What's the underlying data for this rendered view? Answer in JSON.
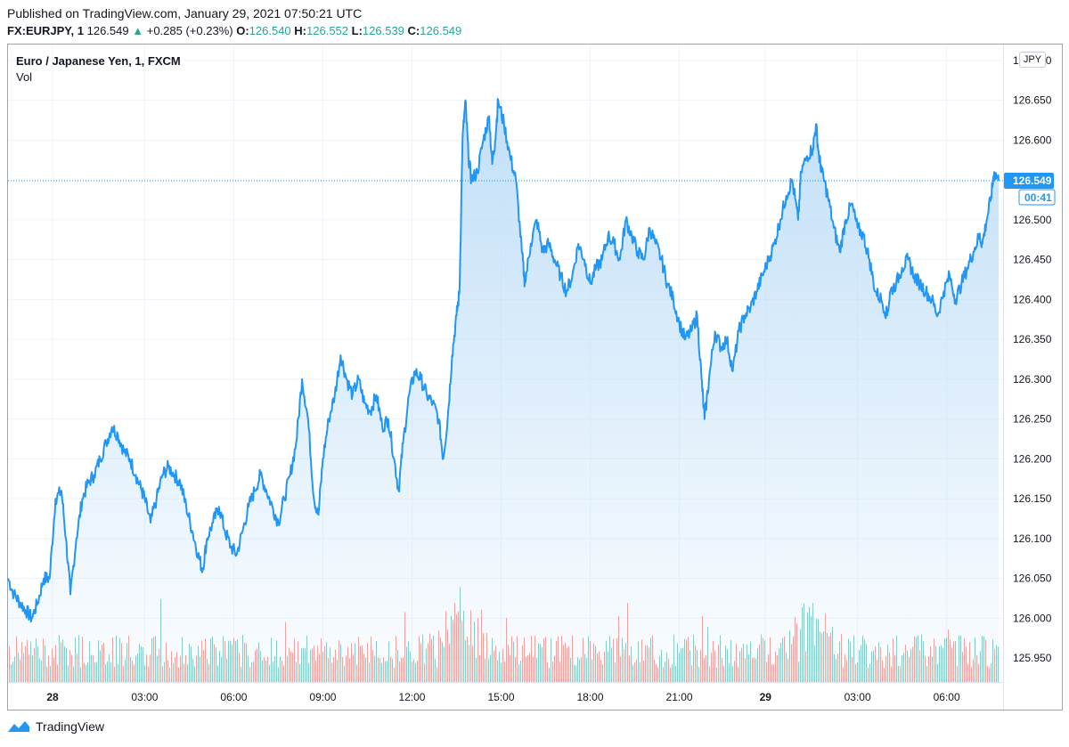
{
  "header": {
    "published": "Published on TradingView.com, January 29, 2021 07:50:21 UTC",
    "symbol": "FX:EURJPY, 1",
    "last": "126.549",
    "change_arrow": "▲",
    "change": "+0.285 (+0.23%)",
    "o_label": "O:",
    "o_value": "126.540",
    "h_label": "H:",
    "h_value": "126.552",
    "l_label": "L:",
    "l_value": "126.539",
    "c_label": "C:",
    "c_value": "126.549"
  },
  "legend": {
    "title": "Euro / Japanese Yen, 1, FXCM",
    "vol": "Vol"
  },
  "currency_badge": "JPY",
  "price_label": "126.549",
  "countdown_label": "00:41",
  "footer": {
    "brand": "TradingView",
    "logo_icon": "tradingview-logo-icon"
  },
  "colors": {
    "line": "#2196f3",
    "fill_top": "#bbdcf7",
    "up_volume": "#26a69a",
    "down_volume": "#ef5350",
    "grid": "#f0f3fa"
  },
  "chart_data": {
    "type": "area",
    "title": "Euro / Japanese Yen, 1, FXCM",
    "ylim": [
      125.92,
      126.72
    ],
    "y_ticks": [
      "126.700",
      "126.650",
      "126.600",
      "126.550",
      "126.500",
      "126.450",
      "126.400",
      "126.350",
      "126.300",
      "126.250",
      "126.200",
      "126.150",
      "126.100",
      "126.050",
      "126.000",
      "125.950"
    ],
    "x_ticks": [
      {
        "label": "28",
        "t": -0.1,
        "bold": true
      },
      {
        "label": "03:00",
        "t": 3
      },
      {
        "label": "06:00",
        "t": 6
      },
      {
        "label": "09:00",
        "t": 9
      },
      {
        "label": "12:00",
        "t": 12
      },
      {
        "label": "15:00",
        "t": 15
      },
      {
        "label": "18:00",
        "t": 18
      },
      {
        "label": "21:00",
        "t": 21
      },
      {
        "label": "29",
        "t": 23.9,
        "bold": true
      },
      {
        "label": "03:00",
        "t": 27
      },
      {
        "label": "06:00",
        "t": 30
      }
    ],
    "x_unit": "hours since Jan 28 00:00 UTC",
    "xlim": [
      -1.6,
      31.9
    ],
    "series": [
      {
        "name": "EURJPY",
        "points": [
          [
            -1.6,
            126.05
          ],
          [
            -1.4,
            126.03
          ],
          [
            -1.2,
            126.02
          ],
          [
            -1.0,
            126.01
          ],
          [
            -0.8,
            126.0
          ],
          [
            -0.6,
            126.02
          ],
          [
            -0.4,
            126.05
          ],
          [
            -0.2,
            126.05
          ],
          [
            0.0,
            126.15
          ],
          [
            0.2,
            126.16
          ],
          [
            0.35,
            126.1
          ],
          [
            0.5,
            126.03
          ],
          [
            0.7,
            126.1
          ],
          [
            0.9,
            126.15
          ],
          [
            1.1,
            126.17
          ],
          [
            1.3,
            126.18
          ],
          [
            1.5,
            126.2
          ],
          [
            1.7,
            126.22
          ],
          [
            1.9,
            126.24
          ],
          [
            2.1,
            126.23
          ],
          [
            2.3,
            126.21
          ],
          [
            2.5,
            126.2
          ],
          [
            2.7,
            126.18
          ],
          [
            2.9,
            126.16
          ],
          [
            3.0,
            126.15
          ],
          [
            3.2,
            126.12
          ],
          [
            3.4,
            126.15
          ],
          [
            3.6,
            126.18
          ],
          [
            3.8,
            126.19
          ],
          [
            4.0,
            126.18
          ],
          [
            4.2,
            126.17
          ],
          [
            4.4,
            126.14
          ],
          [
            4.6,
            126.11
          ],
          [
            4.8,
            126.08
          ],
          [
            4.95,
            126.06
          ],
          [
            5.1,
            126.1
          ],
          [
            5.3,
            126.12
          ],
          [
            5.5,
            126.14
          ],
          [
            5.7,
            126.11
          ],
          [
            5.9,
            126.09
          ],
          [
            6.1,
            126.08
          ],
          [
            6.3,
            126.11
          ],
          [
            6.5,
            126.14
          ],
          [
            6.7,
            126.16
          ],
          [
            6.9,
            126.18
          ],
          [
            7.1,
            126.16
          ],
          [
            7.3,
            126.14
          ],
          [
            7.5,
            126.12
          ],
          [
            7.7,
            126.15
          ],
          [
            7.9,
            126.18
          ],
          [
            8.1,
            126.22
          ],
          [
            8.3,
            126.3
          ],
          [
            8.5,
            126.25
          ],
          [
            8.7,
            126.15
          ],
          [
            8.85,
            126.13
          ],
          [
            9.0,
            126.2
          ],
          [
            9.2,
            126.25
          ],
          [
            9.4,
            126.28
          ],
          [
            9.6,
            126.33
          ],
          [
            9.8,
            126.3
          ],
          [
            10.0,
            126.28
          ],
          [
            10.2,
            126.3
          ],
          [
            10.4,
            126.27
          ],
          [
            10.6,
            126.26
          ],
          [
            10.8,
            126.28
          ],
          [
            11.0,
            126.24
          ],
          [
            11.2,
            126.25
          ],
          [
            11.4,
            126.2
          ],
          [
            11.55,
            126.16
          ],
          [
            11.7,
            126.22
          ],
          [
            11.9,
            126.28
          ],
          [
            12.1,
            126.31
          ],
          [
            12.3,
            126.3
          ],
          [
            12.5,
            126.28
          ],
          [
            12.7,
            126.27
          ],
          [
            12.9,
            126.25
          ],
          [
            13.05,
            126.2
          ],
          [
            13.2,
            126.25
          ],
          [
            13.35,
            126.33
          ],
          [
            13.5,
            126.38
          ],
          [
            13.6,
            126.41
          ],
          [
            13.7,
            126.6
          ],
          [
            13.8,
            126.65
          ],
          [
            13.9,
            126.58
          ],
          [
            14.0,
            126.55
          ],
          [
            14.2,
            126.56
          ],
          [
            14.4,
            126.6
          ],
          [
            14.6,
            126.63
          ],
          [
            14.7,
            126.57
          ],
          [
            14.8,
            126.6
          ],
          [
            14.9,
            126.65
          ],
          [
            15.1,
            126.62
          ],
          [
            15.3,
            126.58
          ],
          [
            15.5,
            126.55
          ],
          [
            15.7,
            126.46
          ],
          [
            15.8,
            126.42
          ],
          [
            16.0,
            126.47
          ],
          [
            16.2,
            126.5
          ],
          [
            16.4,
            126.46
          ],
          [
            16.6,
            126.47
          ],
          [
            16.8,
            126.45
          ],
          [
            17.0,
            126.43
          ],
          [
            17.2,
            126.41
          ],
          [
            17.4,
            126.43
          ],
          [
            17.6,
            126.47
          ],
          [
            17.8,
            126.45
          ],
          [
            18.0,
            126.42
          ],
          [
            18.2,
            126.44
          ],
          [
            18.4,
            126.45
          ],
          [
            18.6,
            126.48
          ],
          [
            18.8,
            126.47
          ],
          [
            19.0,
            126.45
          ],
          [
            19.2,
            126.5
          ],
          [
            19.4,
            126.48
          ],
          [
            19.6,
            126.46
          ],
          [
            19.8,
            126.45
          ],
          [
            20.0,
            126.49
          ],
          [
            20.2,
            126.47
          ],
          [
            20.4,
            126.45
          ],
          [
            20.6,
            126.42
          ],
          [
            20.8,
            126.4
          ],
          [
            21.0,
            126.37
          ],
          [
            21.2,
            126.35
          ],
          [
            21.4,
            126.36
          ],
          [
            21.6,
            126.38
          ],
          [
            21.75,
            126.3
          ],
          [
            21.85,
            126.25
          ],
          [
            22.0,
            126.3
          ],
          [
            22.2,
            126.36
          ],
          [
            22.4,
            126.34
          ],
          [
            22.6,
            126.35
          ],
          [
            22.8,
            126.31
          ],
          [
            23.0,
            126.36
          ],
          [
            23.2,
            126.38
          ],
          [
            23.4,
            126.39
          ],
          [
            23.6,
            126.41
          ],
          [
            23.8,
            126.43
          ],
          [
            24.0,
            126.45
          ],
          [
            24.2,
            126.47
          ],
          [
            24.4,
            126.5
          ],
          [
            24.6,
            126.53
          ],
          [
            24.8,
            126.55
          ],
          [
            25.0,
            126.5
          ],
          [
            25.1,
            126.56
          ],
          [
            25.3,
            126.58
          ],
          [
            25.5,
            126.59
          ],
          [
            25.6,
            126.62
          ],
          [
            25.7,
            126.58
          ],
          [
            25.8,
            126.56
          ],
          [
            26.0,
            126.53
          ],
          [
            26.2,
            126.49
          ],
          [
            26.4,
            126.46
          ],
          [
            26.6,
            126.5
          ],
          [
            26.8,
            126.52
          ],
          [
            27.0,
            126.49
          ],
          [
            27.2,
            126.48
          ],
          [
            27.4,
            126.45
          ],
          [
            27.6,
            126.41
          ],
          [
            27.8,
            126.4
          ],
          [
            28.0,
            126.38
          ],
          [
            28.1,
            126.41
          ],
          [
            28.3,
            126.42
          ],
          [
            28.5,
            126.44
          ],
          [
            28.7,
            126.45
          ],
          [
            28.9,
            126.43
          ],
          [
            29.1,
            126.42
          ],
          [
            29.3,
            126.41
          ],
          [
            29.5,
            126.4
          ],
          [
            29.7,
            126.38
          ],
          [
            29.9,
            126.41
          ],
          [
            30.1,
            126.43
          ],
          [
            30.3,
            126.4
          ],
          [
            30.5,
            126.42
          ],
          [
            30.7,
            126.44
          ],
          [
            30.9,
            126.46
          ],
          [
            31.1,
            126.48
          ],
          [
            31.2,
            126.47
          ],
          [
            31.35,
            126.5
          ],
          [
            31.5,
            126.53
          ],
          [
            31.6,
            126.56
          ],
          [
            31.75,
            126.549
          ]
        ]
      }
    ],
    "volume": {
      "title": "Vol",
      "max_spike_hours": [
        13.7,
        25.3
      ],
      "typical_level": 0.35
    },
    "current_price": 126.549
  }
}
